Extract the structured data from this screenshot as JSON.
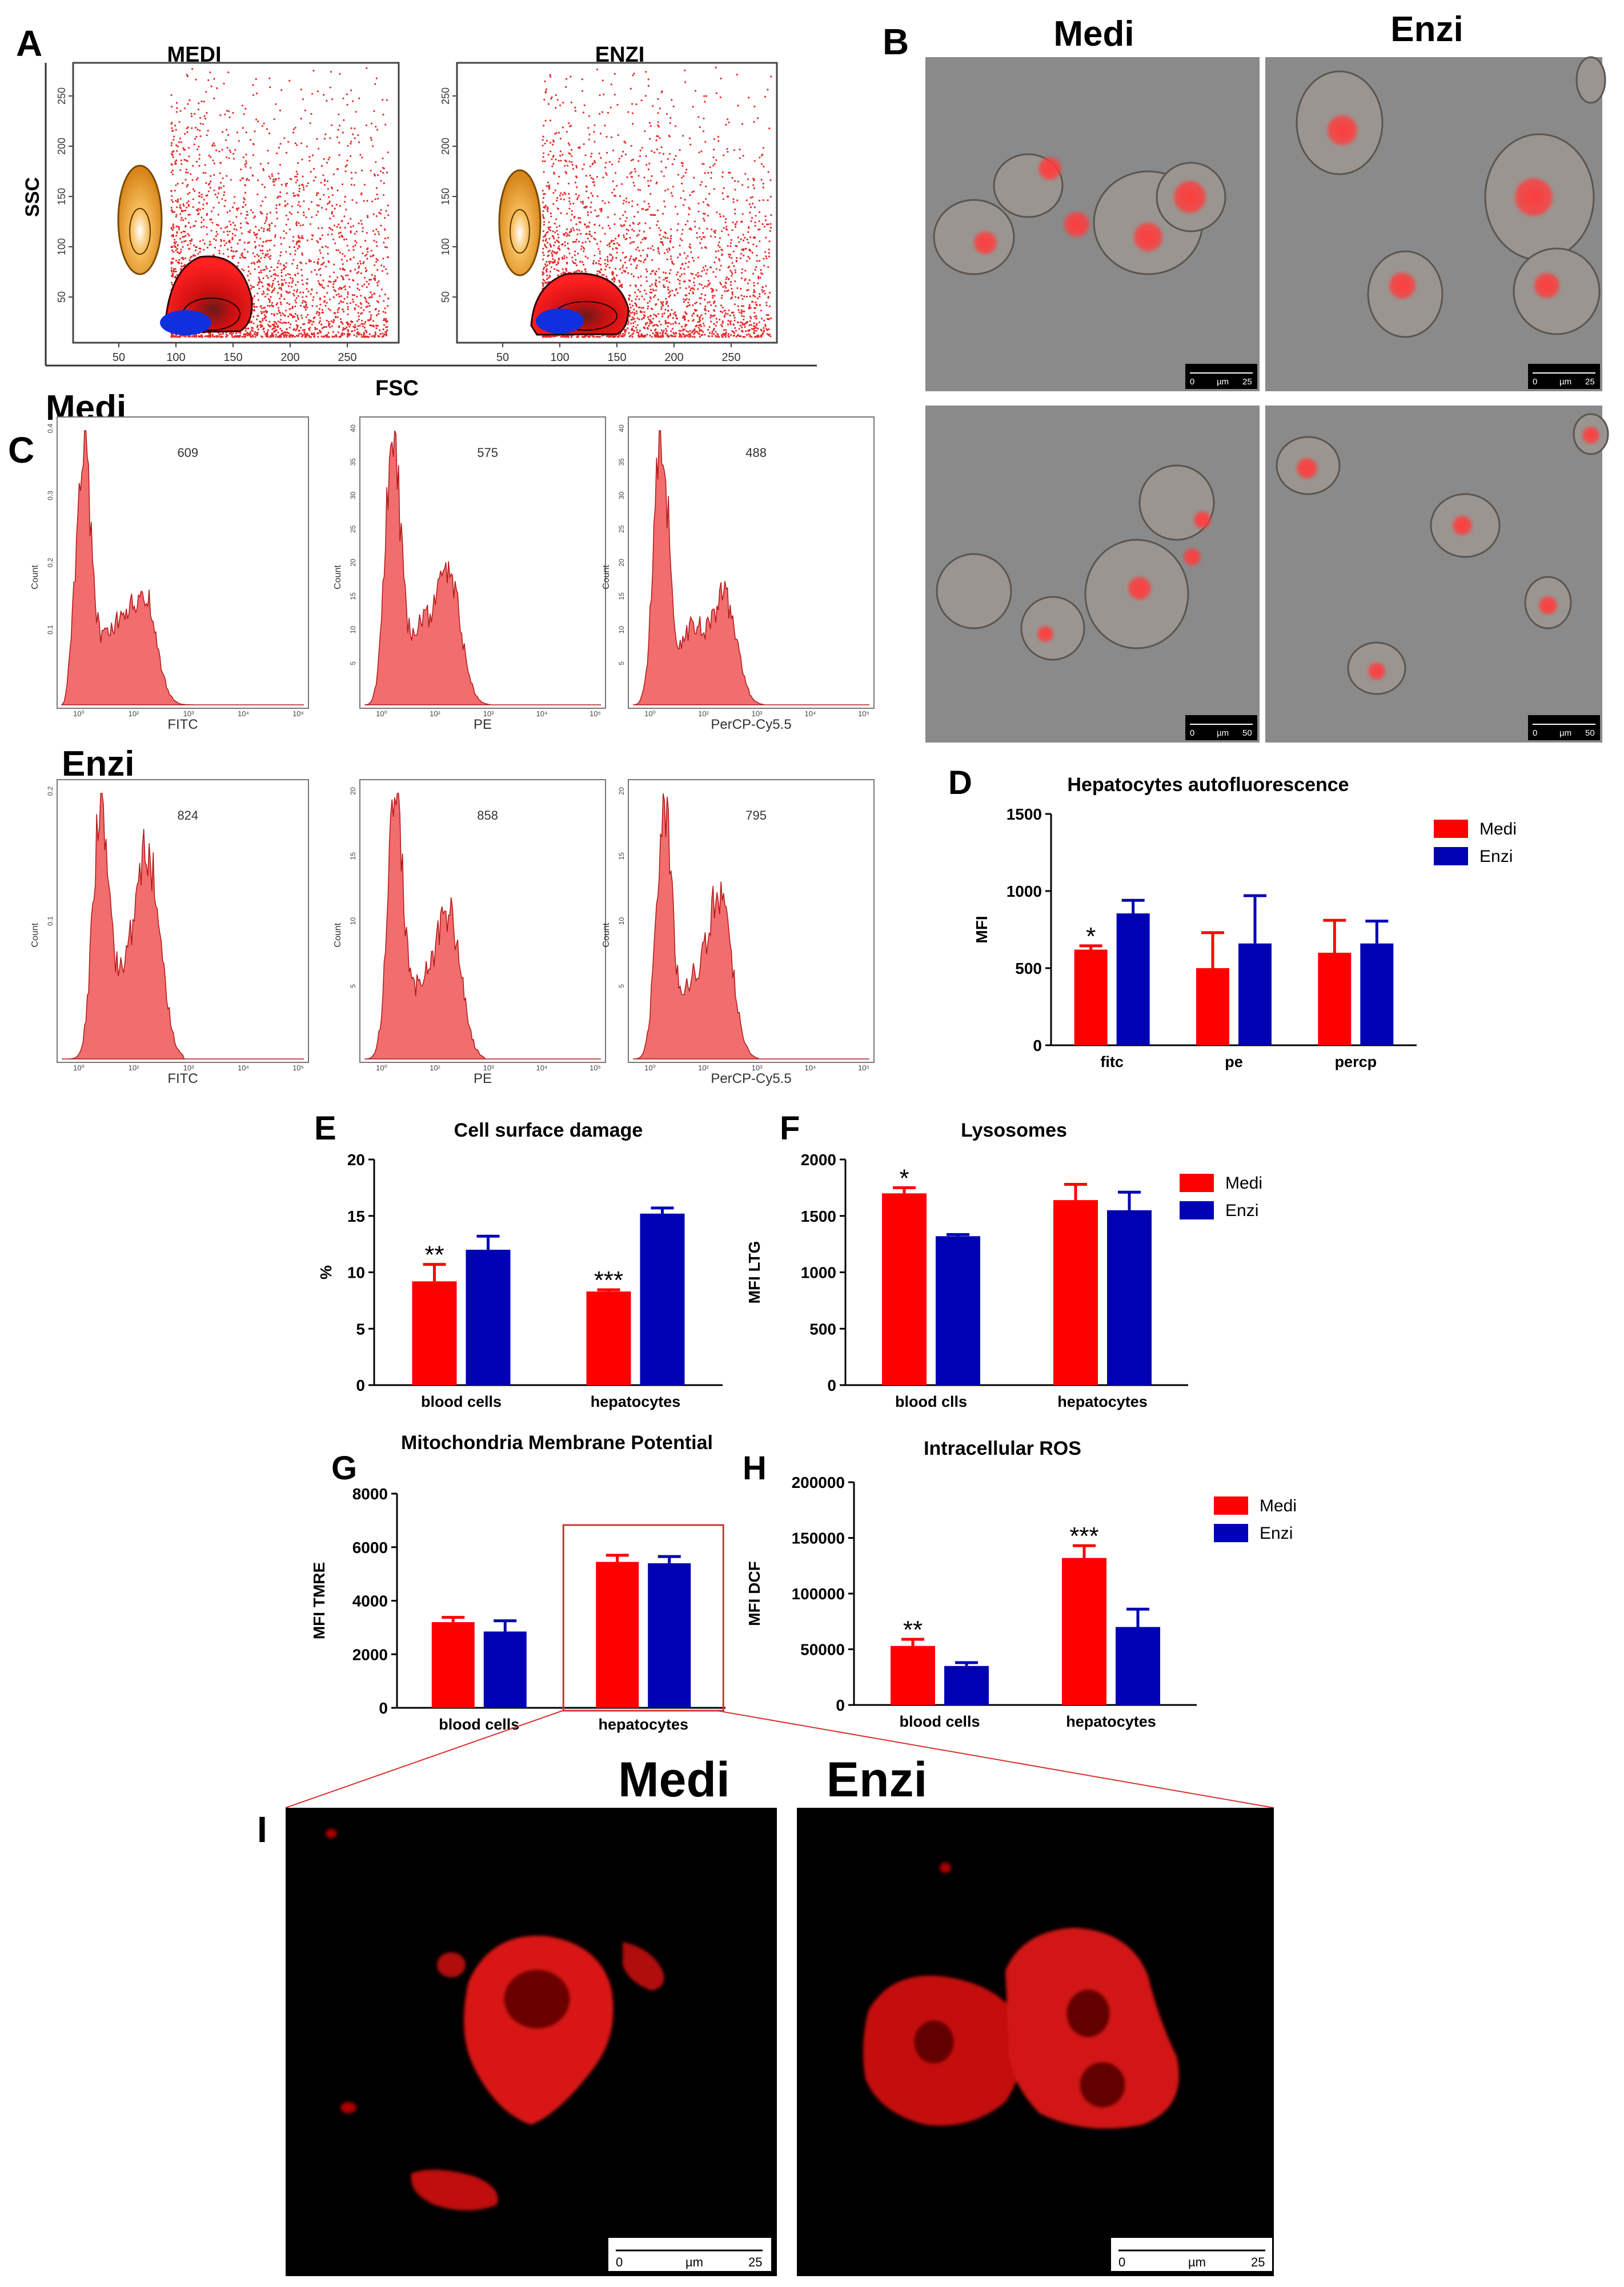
{
  "colors": {
    "medi": "#ff0000",
    "enzi": "#0000b4",
    "hist_fill": "#f26d6d",
    "dot": "#e52b2b",
    "orange": "#f0a020",
    "blue_pop": "#1030e0",
    "micro_bg": "#8a8a8a",
    "confocal_bg": "#000000",
    "nucleus": "#ff3c3c"
  },
  "panels": {
    "A": {
      "letter": "A",
      "left_title": "MEDI",
      "right_title": "ENZI",
      "y_label": "SSC",
      "x_label": "FSC",
      "x_ticks": [
        "50",
        "100",
        "150",
        "200",
        "250"
      ],
      "y_ticks": [
        "50",
        "100",
        "150",
        "200",
        "250"
      ]
    },
    "B": {
      "letter": "B",
      "col_left": "Medi",
      "col_right": "Enzi",
      "scalebars": [
        {
          "zero": "0",
          "unit": "µm",
          "value": "25"
        },
        {
          "zero": "0",
          "unit": "µm",
          "value": "25"
        },
        {
          "zero": "0",
          "unit": "µm",
          "value": "50"
        },
        {
          "zero": "0",
          "unit": "µm",
          "value": "50"
        }
      ]
    },
    "C": {
      "letter": "C",
      "row1_label": "Medi",
      "row2_label": "Enzi",
      "y_label": "Count",
      "x_labels": [
        "FITC",
        "PE",
        "PerCP-Cy5.5"
      ],
      "medi_values": [
        "609",
        "575",
        "488"
      ],
      "enzi_values": [
        "824",
        "858",
        "795"
      ],
      "log_ticks": [
        "10⁰",
        "10²",
        "10³",
        "10⁴",
        "10⁵"
      ],
      "medi_y_ticks": [
        [
          "0.4",
          "0.3",
          "0.2",
          "0.1"
        ],
        [
          "40",
          "35",
          "30",
          "25",
          "20",
          "15",
          "10",
          "5"
        ],
        [
          "40",
          "35",
          "30",
          "25",
          "20",
          "15",
          "10",
          "5"
        ]
      ],
      "enzi_y_ticks": [
        [
          "0.2",
          "0.1"
        ],
        [
          "20",
          "15",
          "10",
          "5"
        ],
        [
          "20",
          "15",
          "10",
          "5"
        ]
      ]
    },
    "I": {
      "letter": "I",
      "left_label": "Medi",
      "right_label": "Enzi",
      "scalebars": [
        {
          "zero": "0",
          "unit": "µm",
          "value": "25"
        },
        {
          "zero": "0",
          "unit": "µm",
          "value": "25"
        }
      ]
    }
  },
  "chart_data": [
    {
      "id": "D",
      "letter": "D",
      "type": "bar",
      "title": "Hepatocytes autofluorescence",
      "categories": [
        "fitc",
        "pe",
        "percp"
      ],
      "ylabel": "MFI",
      "ylim": [
        0,
        1500
      ],
      "yticks": [
        "0",
        "500",
        "1000",
        "1500"
      ],
      "series": [
        {
          "name": "Medi",
          "values": [
            620,
            500,
            600
          ],
          "errors": [
            25,
            230,
            210
          ]
        },
        {
          "name": "Enzi",
          "values": [
            855,
            660,
            660
          ],
          "errors": [
            85,
            310,
            145
          ]
        }
      ],
      "annotations": [
        {
          "text": "*",
          "category": 0,
          "series": 0
        }
      ],
      "legend": [
        "Medi",
        "Enzi"
      ],
      "legend_position": "right"
    },
    {
      "id": "E",
      "letter": "E",
      "type": "bar",
      "title": "Cell surface damage",
      "categories": [
        "blood cells",
        "hepatocytes"
      ],
      "ylabel": "%",
      "ylim": [
        0,
        20
      ],
      "yticks": [
        "0",
        "5",
        "10",
        "15",
        "20"
      ],
      "series": [
        {
          "name": "Medi",
          "values": [
            9.2,
            8.3
          ],
          "errors": [
            1.5,
            0.15
          ]
        },
        {
          "name": "Enzi",
          "values": [
            12.0,
            15.2
          ],
          "errors": [
            1.2,
            0.5
          ]
        }
      ],
      "annotations": [
        {
          "text": "**",
          "category": 0,
          "series": 0
        },
        {
          "text": "***",
          "category": 1,
          "series": 0
        }
      ]
    },
    {
      "id": "F",
      "letter": "F",
      "type": "bar",
      "title": "Lysosomes",
      "categories": [
        "blood clls",
        "hepatocytes"
      ],
      "ylabel": "MFI LTG",
      "ylim": [
        0,
        2000
      ],
      "yticks": [
        "0",
        "500",
        "1000",
        "1500",
        "2000"
      ],
      "series": [
        {
          "name": "Medi",
          "values": [
            1700,
            1640
          ],
          "errors": [
            50,
            140
          ]
        },
        {
          "name": "Enzi",
          "values": [
            1320,
            1550
          ],
          "errors": [
            15,
            160
          ]
        }
      ],
      "annotations": [
        {
          "text": "*",
          "category": 0,
          "series": 0
        }
      ],
      "legend": [
        "Medi",
        "Enzi"
      ],
      "legend_position": "right"
    },
    {
      "id": "G",
      "letter": "G",
      "type": "bar",
      "title": "Mitochondria Membrane Potential",
      "categories": [
        "blood cells",
        "hepatocytes"
      ],
      "ylabel": "MFI TMRE",
      "ylim": [
        0,
        8000
      ],
      "yticks": [
        "0",
        "2000",
        "4000",
        "6000",
        "8000"
      ],
      "series": [
        {
          "name": "Medi",
          "values": [
            3200,
            5450
          ],
          "errors": [
            180,
            250
          ]
        },
        {
          "name": "Enzi",
          "values": [
            2850,
            5400
          ],
          "errors": [
            400,
            250
          ]
        }
      ],
      "annotations": [],
      "highlight": "hepatocytes"
    },
    {
      "id": "H",
      "letter": "H",
      "type": "bar",
      "title": "Intracellular ROS",
      "categories": [
        "blood cells",
        "hepatocytes"
      ],
      "ylabel": "MFI DCF",
      "ylim": [
        0,
        200000
      ],
      "yticks": [
        "0",
        "50000",
        "100000",
        "150000",
        "200000"
      ],
      "series": [
        {
          "name": "Medi",
          "values": [
            53000,
            132000
          ],
          "errors": [
            6000,
            11000
          ]
        },
        {
          "name": "Enzi",
          "values": [
            35000,
            70000
          ],
          "errors": [
            3000,
            16000
          ]
        }
      ],
      "annotations": [
        {
          "text": "**",
          "category": 0,
          "series": 0
        },
        {
          "text": "***",
          "category": 1,
          "series": 0
        }
      ],
      "legend": [
        "Medi",
        "Enzi"
      ],
      "legend_position": "right"
    }
  ]
}
